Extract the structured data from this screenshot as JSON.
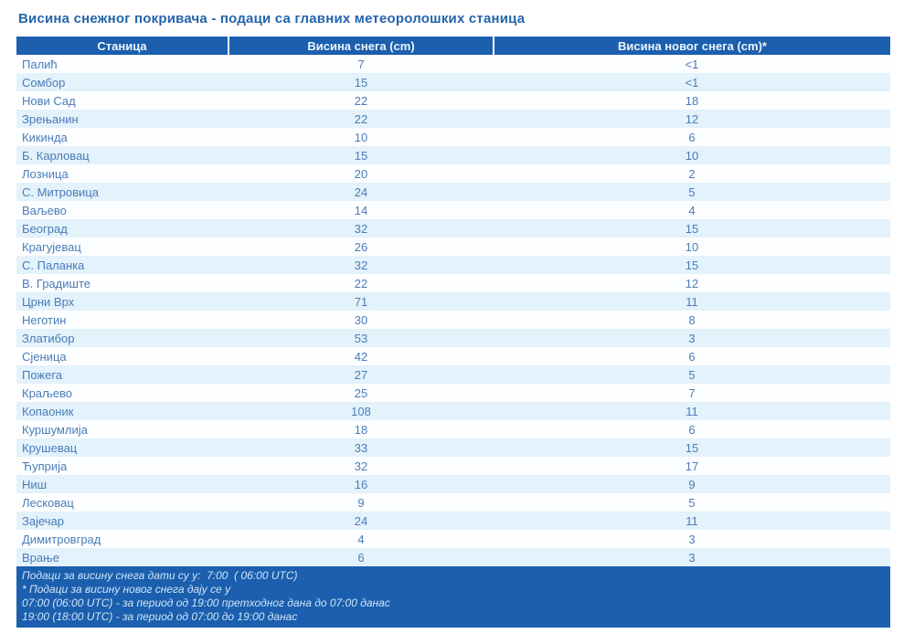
{
  "title": "Висина снежног покривача - подаци са главних метеоролошких станица",
  "table": {
    "columns": [
      "Станица",
      "Висина снега (cm)",
      "Висина новог снега (cm)*"
    ],
    "rows": [
      {
        "station": "Палић",
        "snow": "7",
        "new_snow": "<1"
      },
      {
        "station": "Сомбор",
        "snow": "15",
        "new_snow": "<1"
      },
      {
        "station": "Нови Сад",
        "snow": "22",
        "new_snow": "18"
      },
      {
        "station": "Зрењанин",
        "snow": "22",
        "new_snow": "12"
      },
      {
        "station": "Кикинда",
        "snow": "10",
        "new_snow": "6"
      },
      {
        "station": "Б. Карловац",
        "snow": "15",
        "new_snow": "10"
      },
      {
        "station": "Лозница",
        "snow": "20",
        "new_snow": "2"
      },
      {
        "station": "С. Митровица",
        "snow": "24",
        "new_snow": "5"
      },
      {
        "station": "Ваљево",
        "snow": "14",
        "new_snow": "4"
      },
      {
        "station": "Београд",
        "snow": "32",
        "new_snow": "15"
      },
      {
        "station": "Крагујевац",
        "snow": "26",
        "new_snow": "10"
      },
      {
        "station": "С. Паланка",
        "snow": "32",
        "new_snow": "15"
      },
      {
        "station": "В. Градиште",
        "snow": "22",
        "new_snow": "12"
      },
      {
        "station": "Црни Врх",
        "snow": "71",
        "new_snow": "11"
      },
      {
        "station": "Неготин",
        "snow": "30",
        "new_snow": "8"
      },
      {
        "station": "Златибор",
        "snow": "53",
        "new_snow": "3"
      },
      {
        "station": "Сјеница",
        "snow": "42",
        "new_snow": "6"
      },
      {
        "station": "Пожега",
        "snow": "27",
        "new_snow": "5"
      },
      {
        "station": "Краљево",
        "snow": "25",
        "new_snow": "7"
      },
      {
        "station": "Копаоник",
        "snow": "108",
        "new_snow": "11"
      },
      {
        "station": "Куршумлија",
        "snow": "18",
        "new_snow": "6"
      },
      {
        "station": "Крушевац",
        "snow": "33",
        "new_snow": "15"
      },
      {
        "station": "Ћуприја",
        "snow": "32",
        "new_snow": "17"
      },
      {
        "station": "Ниш",
        "snow": "16",
        "new_snow": "9"
      },
      {
        "station": "Лесковац",
        "snow": "9",
        "new_snow": "5"
      },
      {
        "station": "Зајечар",
        "snow": "24",
        "new_snow": "11"
      },
      {
        "station": "Димитровград",
        "snow": "4",
        "new_snow": "3"
      },
      {
        "station": "Врање",
        "snow": "6",
        "new_snow": "3"
      }
    ]
  },
  "footer": {
    "lines": [
      "Подаци за висину снега дати су у:  7:00  ( 06:00 UTC)",
      "* Подаци за висину новог снега дају се у",
      "07:00 (06:00 UTC) - за период од 19:00 претходног дана до 07:00 данас",
      "19:00 (18:00 UTC) - за период од 07:00 до 19:00 данас"
    ]
  },
  "colors": {
    "header_bg": "#1b5fae",
    "row_alt_bg": "#e3f2fb",
    "body_text": "#4a7cb8",
    "title_text": "#2465ab",
    "footer_text": "#cfe4f7"
  }
}
